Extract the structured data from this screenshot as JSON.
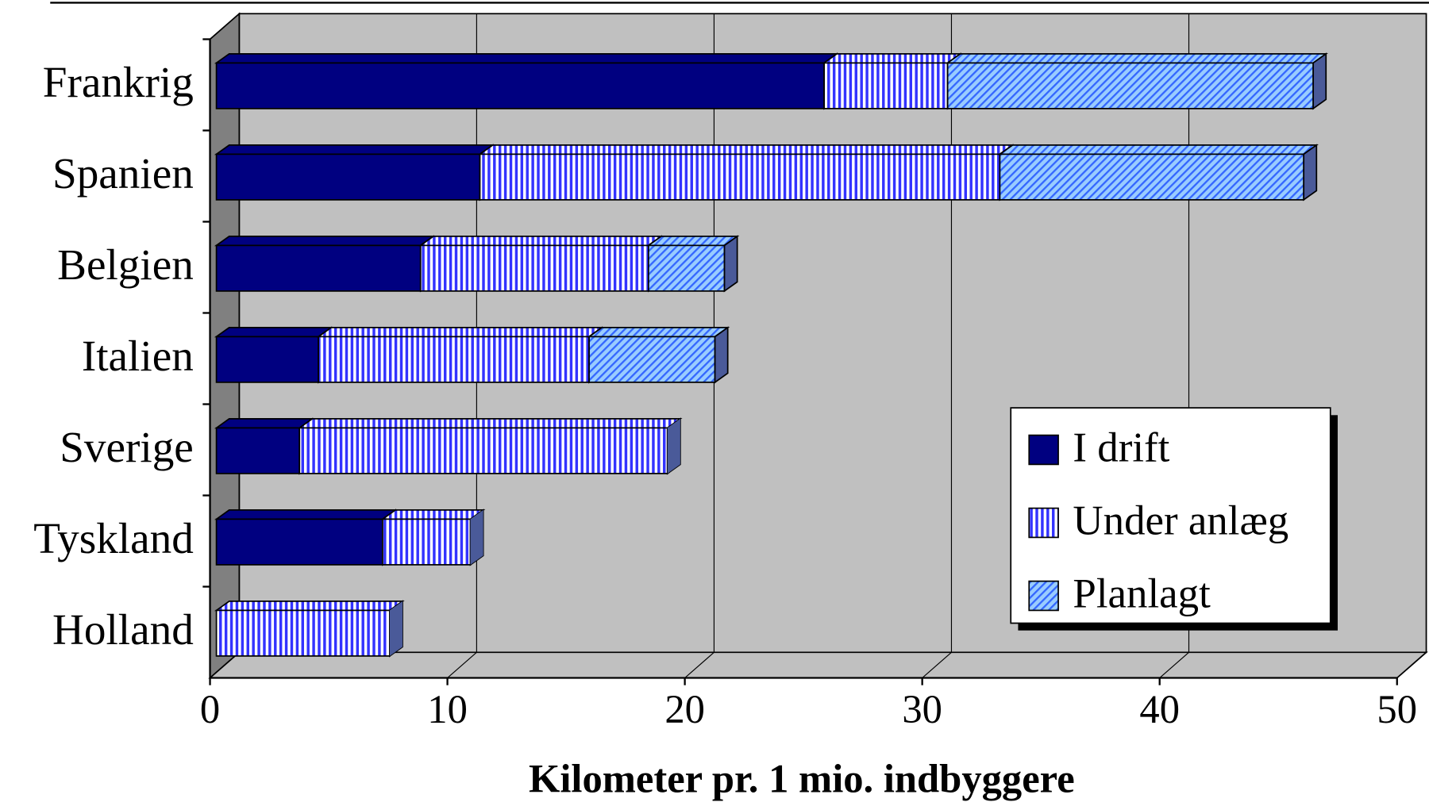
{
  "chart_data": {
    "type": "bar",
    "orientation": "horizontal",
    "stacked": true,
    "three_d": true,
    "xlabel": "Kilometer pr. 1 mio. indbyggere",
    "categories": [
      "Frankrig",
      "Spanien",
      "Belgien",
      "Italien",
      "Sverige",
      "Tyskland",
      "Holland"
    ],
    "series": [
      {
        "name": "I drift",
        "color": "#000080",
        "pattern": "solid",
        "values": [
          25.6,
          11.1,
          8.6,
          4.3,
          3.5,
          7.0,
          0
        ]
      },
      {
        "name": "Under anlæg",
        "color": "#3333ff",
        "pattern": "vertical",
        "values": [
          5.2,
          21.9,
          9.6,
          11.4,
          15.5,
          3.7,
          7.3
        ]
      },
      {
        "name": "Planlagt",
        "color": "#6699ff",
        "pattern": "diagonal",
        "values": [
          15.4,
          12.8,
          3.2,
          5.3,
          0,
          0,
          0
        ]
      }
    ],
    "xlim": [
      0,
      50
    ],
    "xticks": [
      0,
      10,
      20,
      30,
      40,
      50
    ],
    "grid": true,
    "legend": "lower right"
  }
}
